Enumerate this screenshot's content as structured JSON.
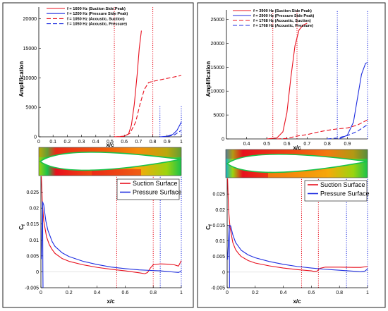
{
  "chart_data": [
    {
      "id": "left-amplification",
      "type": "line",
      "xlabel": "x/c",
      "ylabel": "Amplification",
      "xlim": [
        0,
        1
      ],
      "ylim": [
        0,
        22000
      ],
      "xticks": [
        {
          "v": 0,
          "label": "0"
        },
        {
          "v": 0.1,
          "label": "0.1"
        },
        {
          "v": 0.2,
          "label": "0.2"
        },
        {
          "v": 0.3,
          "label": "0.3"
        },
        {
          "v": 0.4,
          "label": "0.4"
        },
        {
          "v": 0.5,
          "label": "0.5"
        },
        {
          "v": 0.6,
          "label": "0.6"
        },
        {
          "v": 0.7,
          "label": "0.7"
        },
        {
          "v": 0.8,
          "label": "0.8"
        },
        {
          "v": 0.9,
          "label": "0.9"
        },
        {
          "v": 1.0,
          "label": "1"
        }
      ],
      "yticks": [
        {
          "v": 0,
          "label": "0"
        },
        {
          "v": 5000,
          "label": "5000"
        },
        {
          "v": 10000,
          "label": "10000"
        },
        {
          "v": 15000,
          "label": "15000"
        },
        {
          "v": 20000,
          "label": "20000"
        }
      ],
      "legend_position": "top-left",
      "series": [
        {
          "name": "f = 1600 Hz (Suction Side Peak)",
          "color": "#e8101e",
          "dash": "solid",
          "points": [
            [
              0.55,
              0
            ],
            [
              0.6,
              100
            ],
            [
              0.63,
              500
            ],
            [
              0.65,
              2000
            ],
            [
              0.67,
              5500
            ],
            [
              0.69,
              10500
            ],
            [
              0.705,
              15000
            ],
            [
              0.72,
              18000
            ]
          ]
        },
        {
          "name": "f = 1200 Hz (Pressure Side Peak)",
          "color": "#1f2ee0",
          "dash": "solid",
          "points": [
            [
              0.85,
              0
            ],
            [
              0.9,
              100
            ],
            [
              0.94,
              400
            ],
            [
              0.97,
              1100
            ],
            [
              1.0,
              2500
            ]
          ]
        },
        {
          "name": "f = 1050 Hz (Acoustic, Suction)",
          "color": "#e8101e",
          "dash": "long",
          "points": [
            [
              0.53,
              0
            ],
            [
              0.6,
              100
            ],
            [
              0.64,
              600
            ],
            [
              0.68,
              2500
            ],
            [
              0.71,
              5500
            ],
            [
              0.74,
              8000
            ],
            [
              0.77,
              9200
            ],
            [
              0.8,
              9400
            ],
            [
              0.9,
              9900
            ],
            [
              1.0,
              10400
            ]
          ]
        },
        {
          "name": "f = 1050 Hz (Acoustic, Pressure)",
          "color": "#1f2ee0",
          "dash": "long",
          "points": [
            [
              0.86,
              0
            ],
            [
              0.9,
              60
            ],
            [
              0.95,
              300
            ],
            [
              1.0,
              1100
            ]
          ]
        }
      ],
      "vlines": [
        {
          "x": 0.53,
          "color": "#e8101e",
          "ymax": 22000
        },
        {
          "x": 0.8,
          "color": "#e8101e",
          "ymax": 22000
        },
        {
          "x": 0.85,
          "color": "#1f2ee0",
          "ymax": 5300
        },
        {
          "x": 1.0,
          "color": "#1f2ee0",
          "ymax": 5300
        }
      ]
    },
    {
      "id": "right-amplification",
      "type": "line",
      "xlabel": "x/c",
      "ylabel": "Amplification",
      "xlim": [
        0.3,
        1
      ],
      "ylim": [
        0,
        27000
      ],
      "xticks": [
        {
          "v": 0.4,
          "label": "0.4"
        },
        {
          "v": 0.5,
          "label": "0.5"
        },
        {
          "v": 0.6,
          "label": "0.6"
        },
        {
          "v": 0.7,
          "label": "0.7"
        },
        {
          "v": 0.8,
          "label": "0.8"
        },
        {
          "v": 0.9,
          "label": "0.9"
        }
      ],
      "yticks": [
        {
          "v": 0,
          "label": "0"
        },
        {
          "v": 5000,
          "label": "5000"
        },
        {
          "v": 10000,
          "label": "10000"
        },
        {
          "v": 15000,
          "label": "15000"
        },
        {
          "v": 20000,
          "label": "20000"
        },
        {
          "v": 25000,
          "label": "25000"
        }
      ],
      "legend_position": "top-left",
      "series": [
        {
          "name": "f = 3900 Hz (Suction Side Peak)",
          "color": "#e8101e",
          "dash": "solid",
          "points": [
            [
              0.5,
              0
            ],
            [
              0.55,
              200
            ],
            [
              0.58,
              1500
            ],
            [
              0.6,
              5500
            ],
            [
              0.62,
              13000
            ],
            [
              0.64,
              19500
            ],
            [
              0.66,
              22800
            ],
            [
              0.68,
              23800
            ],
            [
              0.7,
              24200
            ]
          ]
        },
        {
          "name": "f = 2900 Hz (Pressure Side Peak)",
          "color": "#1f2ee0",
          "dash": "solid",
          "points": [
            [
              0.86,
              0
            ],
            [
              0.9,
              800
            ],
            [
              0.93,
              3500
            ],
            [
              0.95,
              8500
            ],
            [
              0.97,
              13500
            ],
            [
              0.99,
              15800
            ],
            [
              1.0,
              16000
            ]
          ]
        },
        {
          "name": "f = 1768 Hz (Acoustic, Suction)",
          "color": "#e8101e",
          "dash": "long",
          "points": [
            [
              0.55,
              0
            ],
            [
              0.6,
              100
            ],
            [
              0.65,
              600
            ],
            [
              0.7,
              900
            ],
            [
              0.75,
              1400
            ],
            [
              0.8,
              1800
            ],
            [
              0.85,
              2100
            ],
            [
              0.9,
              2300
            ],
            [
              0.95,
              2900
            ],
            [
              1.0,
              4000
            ]
          ]
        },
        {
          "name": "f = 1768 Hz (Acoustic, Pressure)",
          "color": "#1f2ee0",
          "dash": "long",
          "points": [
            [
              0.8,
              0
            ],
            [
              0.85,
              200
            ],
            [
              0.9,
              700
            ],
            [
              0.95,
              1600
            ],
            [
              1.0,
              3000
            ]
          ]
        }
      ],
      "vlines": [
        {
          "x": 0.53,
          "color": "#e8101e",
          "ymax": 27000
        },
        {
          "x": 0.65,
          "color": "#e8101e",
          "ymax": 27000
        },
        {
          "x": 0.85,
          "color": "#1f2ee0",
          "ymax": 27000
        },
        {
          "x": 1.0,
          "color": "#1f2ee0",
          "ymax": 27000
        }
      ]
    },
    {
      "id": "left-cf",
      "type": "line",
      "xlabel": "x/c",
      "ylabel": "Cf",
      "xlim": [
        0,
        1
      ],
      "ylim": [
        -0.005,
        0.03
      ],
      "xticks": [
        {
          "v": 0,
          "label": "0"
        },
        {
          "v": 0.2,
          "label": "0.2"
        },
        {
          "v": 0.4,
          "label": "0.4"
        },
        {
          "v": 0.6,
          "label": "0.6"
        },
        {
          "v": 0.8,
          "label": "0.8"
        },
        {
          "v": 1.0,
          "label": "1"
        }
      ],
      "yticks": [
        {
          "v": -0.005,
          "label": "-0.005"
        },
        {
          "v": 0,
          "label": "0"
        },
        {
          "v": 0.005,
          "label": "0.005"
        },
        {
          "v": 0.01,
          "label": "0.01"
        },
        {
          "v": 0.015,
          "label": "0.015"
        },
        {
          "v": 0.02,
          "label": "0.02"
        },
        {
          "v": 0.025,
          "label": "0.025"
        }
      ],
      "legend_position": "top-right",
      "series": [
        {
          "name": "Suction Surface",
          "color": "#e8101e",
          "dash": "solid",
          "points": [
            [
              0.003,
              0.03
            ],
            [
              0.01,
              0.022
            ],
            [
              0.02,
              0.016
            ],
            [
              0.04,
              0.011
            ],
            [
              0.06,
              0.0085
            ],
            [
              0.08,
              0.007
            ],
            [
              0.1,
              0.0058
            ],
            [
              0.15,
              0.0042
            ],
            [
              0.2,
              0.0033
            ],
            [
              0.3,
              0.0022
            ],
            [
              0.4,
              0.0014
            ],
            [
              0.5,
              0.0008
            ],
            [
              0.6,
              0.0003
            ],
            [
              0.7,
              -0.0003
            ],
            [
              0.74,
              -0.0006
            ],
            [
              0.76,
              -0.0002
            ],
            [
              0.78,
              0.0012
            ],
            [
              0.8,
              0.0022
            ],
            [
              0.85,
              0.0025
            ],
            [
              0.9,
              0.0024
            ],
            [
              0.95,
              0.0022
            ],
            [
              0.98,
              0.0018
            ],
            [
              1.0,
              0.0035
            ]
          ]
        },
        {
          "name": "Pressure Surface",
          "color": "#1f2ee0",
          "dash": "solid",
          "points": [
            [
              0.003,
              0.004
            ],
            [
              0.012,
              0.022
            ],
            [
              0.02,
              0.021
            ],
            [
              0.035,
              0.016
            ],
            [
              0.05,
              0.013
            ],
            [
              0.08,
              0.0095
            ],
            [
              0.1,
              0.008
            ],
            [
              0.15,
              0.006
            ],
            [
              0.2,
              0.0048
            ],
            [
              0.3,
              0.0033
            ],
            [
              0.4,
              0.0023
            ],
            [
              0.5,
              0.0015
            ],
            [
              0.6,
              0.001
            ],
            [
              0.7,
              0.0006
            ],
            [
              0.8,
              0.0004
            ],
            [
              0.85,
              0.0003
            ],
            [
              0.9,
              0.0001
            ],
            [
              0.95,
              -0.0001
            ],
            [
              0.98,
              -0.0002
            ],
            [
              1.0,
              0.0002
            ]
          ]
        },
        {
          "name": "",
          "color": "#1f2ee0",
          "dash": "solid",
          "points": [
            [
              0.012,
              0.0215
            ],
            [
              0.013,
              0.01
            ],
            [
              0.014,
              0.0
            ],
            [
              0.015,
              -0.005
            ]
          ]
        }
      ],
      "vlines": [
        {
          "x": 0.54,
          "color": "#e8101e",
          "ymax": 0.03
        },
        {
          "x": 0.8,
          "color": "#e8101e",
          "ymax": 0.03
        },
        {
          "x": 0.85,
          "color": "#1f2ee0",
          "ymax": 0.03
        },
        {
          "x": 1.0,
          "color": "#1f2ee0",
          "ymax": 0.03
        }
      ]
    },
    {
      "id": "right-cf",
      "type": "line",
      "xlabel": "x/c",
      "ylabel": "Cf",
      "xlim": [
        0,
        1
      ],
      "ylim": [
        -0.005,
        0.03
      ],
      "xticks": [
        {
          "v": 0,
          "label": "0"
        },
        {
          "v": 0.2,
          "label": "0.2"
        },
        {
          "v": 0.4,
          "label": "0.4"
        },
        {
          "v": 0.6,
          "label": "0.6"
        },
        {
          "v": 0.8,
          "label": "0.8"
        },
        {
          "v": 1.0,
          "label": "1"
        }
      ],
      "yticks": [
        {
          "v": -0.005,
          "label": "-0.005"
        },
        {
          "v": 0,
          "label": "0"
        },
        {
          "v": 0.005,
          "label": "0.005"
        },
        {
          "v": 0.01,
          "label": "0.01"
        },
        {
          "v": 0.015,
          "label": "0.015"
        },
        {
          "v": 0.02,
          "label": "0.02"
        },
        {
          "v": 0.025,
          "label": "0.025"
        }
      ],
      "legend_position": "top-right",
      "series": [
        {
          "name": "Suction Surface",
          "color": "#e8101e",
          "dash": "solid",
          "points": [
            [
              0.003,
              0.03
            ],
            [
              0.01,
              0.02
            ],
            [
              0.02,
              0.0145
            ],
            [
              0.04,
              0.0095
            ],
            [
              0.06,
              0.0072
            ],
            [
              0.08,
              0.006
            ],
            [
              0.1,
              0.005
            ],
            [
              0.15,
              0.0037
            ],
            [
              0.2,
              0.0029
            ],
            [
              0.3,
              0.002
            ],
            [
              0.4,
              0.0013
            ],
            [
              0.5,
              0.0008
            ],
            [
              0.6,
              0.0004
            ],
            [
              0.62,
              0.0002
            ],
            [
              0.64,
              0.0003
            ],
            [
              0.66,
              0.0012
            ],
            [
              0.7,
              0.0016
            ],
            [
              0.8,
              0.0016
            ],
            [
              0.9,
              0.0015
            ],
            [
              0.95,
              0.0015
            ],
            [
              1.0,
              0.0018
            ]
          ]
        },
        {
          "name": "Pressure Surface",
          "color": "#1f2ee0",
          "dash": "solid",
          "points": [
            [
              0.003,
              0.004
            ],
            [
              0.015,
              0.015
            ],
            [
              0.025,
              0.0148
            ],
            [
              0.04,
              0.012
            ],
            [
              0.06,
              0.0095
            ],
            [
              0.1,
              0.007
            ],
            [
              0.15,
              0.0055
            ],
            [
              0.2,
              0.0046
            ],
            [
              0.3,
              0.0034
            ],
            [
              0.4,
              0.0025
            ],
            [
              0.5,
              0.0018
            ],
            [
              0.6,
              0.0013
            ],
            [
              0.7,
              0.0009
            ],
            [
              0.8,
              0.0006
            ],
            [
              0.9,
              0.0003
            ],
            [
              0.95,
              0.0001
            ],
            [
              0.98,
              0.0003
            ],
            [
              1.0,
              0.001
            ]
          ]
        },
        {
          "name": "",
          "color": "#1f2ee0",
          "dash": "solid",
          "points": [
            [
              0.015,
              0.015
            ],
            [
              0.016,
              0.005
            ],
            [
              0.017,
              -0.005
            ]
          ]
        }
      ],
      "vlines": [
        {
          "x": 0.53,
          "color": "#e8101e",
          "ymax": 0.03
        },
        {
          "x": 0.65,
          "color": "#e8101e",
          "ymax": 0.03
        },
        {
          "x": 0.85,
          "color": "#1f2ee0",
          "ymax": 0.03
        },
        {
          "x": 1.0,
          "color": "#1f2ee0",
          "ymax": 0.03
        }
      ]
    }
  ],
  "contour_colors": [
    "#e8101e",
    "#f25a0c",
    "#f7a90b",
    "#9bd40f",
    "#19c24a",
    "#15b0c9"
  ]
}
